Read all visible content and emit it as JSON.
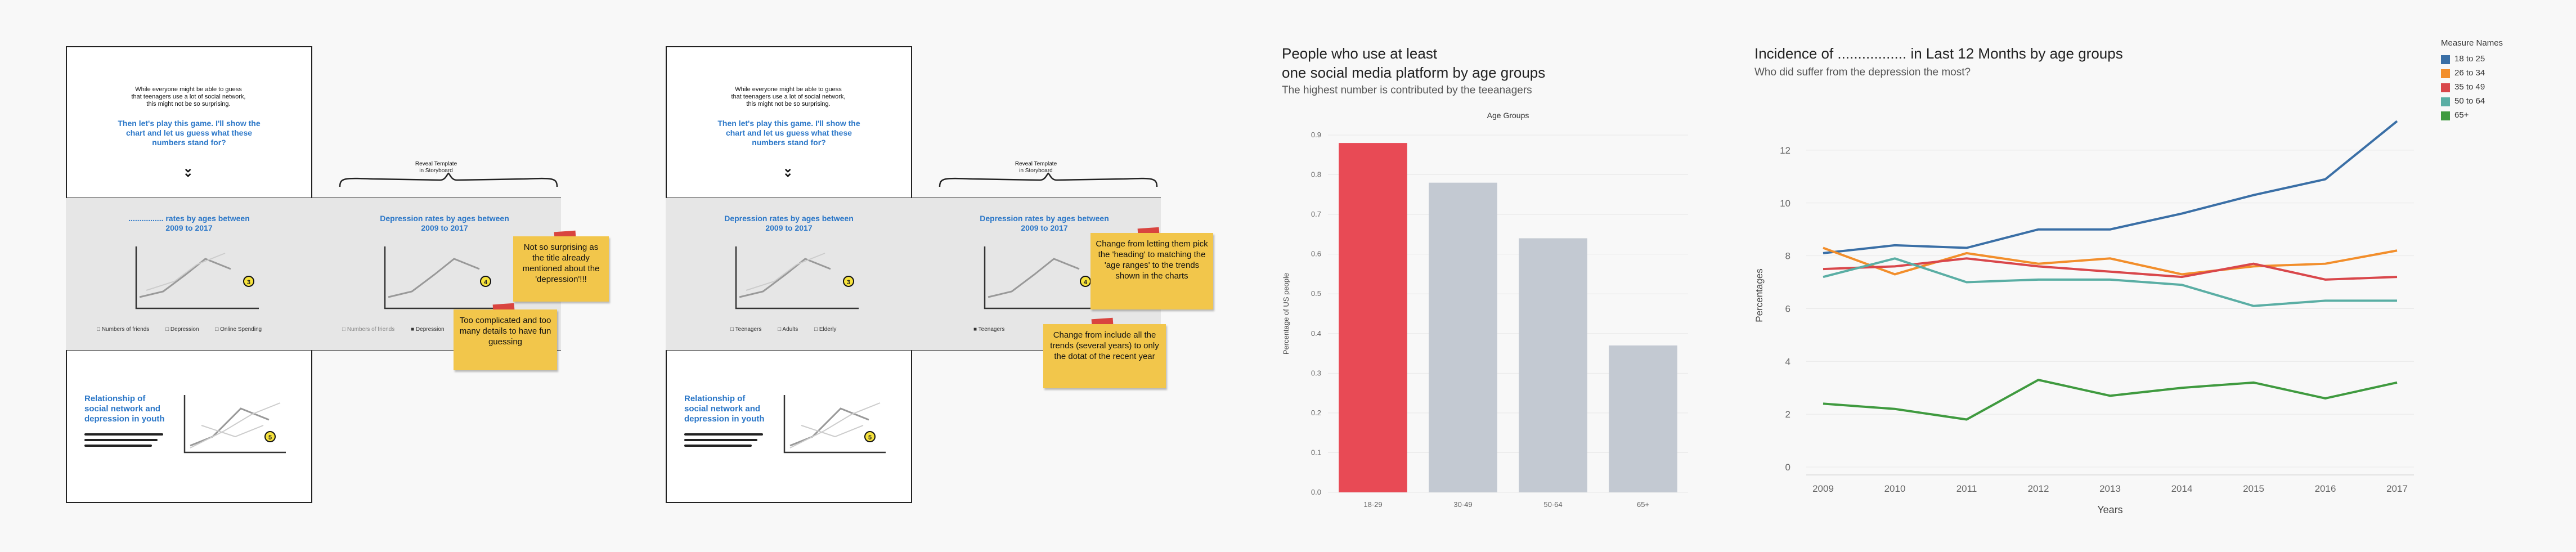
{
  "storyboard1": {
    "intro_text": [
      "While everyone might be able to guess",
      "that teenagers use a lot of social network,",
      "this might not be so surprising."
    ],
    "question": [
      "Then let's play this game. I'll show the",
      "chart and let us guess what these",
      "numbers stand for?"
    ],
    "panel_a_title": [
      "................ rates by ages between",
      "2009 to 2017"
    ],
    "panel_a_legend": [
      "Numbers of friends",
      "Depression",
      "Online Spending"
    ],
    "panel_b_title": [
      "Depression rates by ages between",
      "2009 to 2017"
    ],
    "panel_b_legend": [
      "Numbers of friends",
      "Depression"
    ],
    "brace_label": [
      "Reveal Template",
      "in Storyboard"
    ],
    "sticky_1": "Not so surprising as the title already mentioned about the 'depression'!!!",
    "sticky_2": "Too complicated and too many details to have fun guessing",
    "relationship_title": [
      "Relationship of",
      "social network and",
      "depression in youth"
    ],
    "numbers": [
      "3",
      "4",
      "5"
    ]
  },
  "storyboard2": {
    "intro_text": [
      "While everyone might be able to guess",
      "that teenagers use a lot of social network,",
      "this might not be so surprising."
    ],
    "question": [
      "Then let's play this game. I'll show the",
      "chart and let us guess what these",
      "numbers stand for?"
    ],
    "panel_a_title": [
      "Depression rates by ages between",
      "2009 to 2017"
    ],
    "panel_a_legend": [
      "Teenagers",
      "Adults",
      "Elderly"
    ],
    "panel_b_title": [
      "Depression rates by ages between",
      "2009 to 2017"
    ],
    "panel_b_legend": [
      "Teenagers"
    ],
    "brace_label": [
      "Reveal Template",
      "in Storyboard"
    ],
    "sticky_1": "Change from letting them pick the 'heading' to matching the 'age ranges' to the trends shown in the charts",
    "sticky_2": "Change from include all the trends (several years) to only the dotat of the recent year",
    "relationship_title": [
      "Relationship of",
      "social network and",
      "depression in youth"
    ],
    "numbers": [
      "3",
      "4",
      "5"
    ]
  },
  "chart_data": [
    {
      "type": "bar",
      "title": "People who use at least\none social media platform by age groups",
      "subtitle": "The highest number is contributed by the teeanagers",
      "xlabel": "Age Groups",
      "ylabel": "Percentage of US people",
      "categories": [
        "18-29",
        "30-49",
        "50-64",
        "65+"
      ],
      "values": [
        0.88,
        0.78,
        0.64,
        0.37
      ],
      "ylim": [
        0,
        0.9
      ],
      "yticks": [
        "0.0",
        "0.1",
        "0.2",
        "0.3",
        "0.4",
        "0.5",
        "0.6",
        "0.7",
        "0.8",
        "0.9"
      ],
      "colors": [
        "#e84a55",
        "#c3c9d2",
        "#c3c9d2",
        "#c3c9d2"
      ],
      "grid": true
    },
    {
      "type": "line",
      "title": "Incidence of ................. in Last 12 Months by age groups",
      "subtitle": "Who did suffer from the depression the most?",
      "xlabel": "Years",
      "ylabel": "Percentages",
      "x": [
        "2009",
        "2010",
        "2011",
        "2012",
        "2013",
        "2014",
        "2015",
        "2016",
        "2017"
      ],
      "ylim": [
        0,
        13
      ],
      "yticks": [
        "0",
        "2",
        "4",
        "6",
        "8",
        "10",
        "12"
      ],
      "legend_title": "Measure Names",
      "legend_position": "top-right",
      "series": [
        {
          "name": "18 to 25",
          "color": "#3a6fa6",
          "values": [
            8.1,
            8.4,
            8.3,
            9.0,
            9.0,
            9.6,
            10.3,
            10.9,
            13.1
          ]
        },
        {
          "name": "26 to 34",
          "color": "#f28e2b",
          "values": [
            8.3,
            7.3,
            8.1,
            7.7,
            7.9,
            7.3,
            7.6,
            7.7,
            8.2
          ]
        },
        {
          "name": "35 to 49",
          "color": "#d9474b",
          "values": [
            7.5,
            7.6,
            7.9,
            7.6,
            7.4,
            7.2,
            7.7,
            7.1,
            7.2
          ]
        },
        {
          "name": "50 to 64",
          "color": "#5aaea4",
          "values": [
            7.2,
            7.9,
            7.0,
            7.1,
            7.1,
            6.9,
            6.1,
            6.3,
            6.3
          ]
        },
        {
          "name": "65+",
          "color": "#3f9a3f",
          "values": [
            2.4,
            2.2,
            1.8,
            3.3,
            2.7,
            3.0,
            3.2,
            2.6,
            3.2
          ]
        }
      ],
      "grid": true
    }
  ]
}
